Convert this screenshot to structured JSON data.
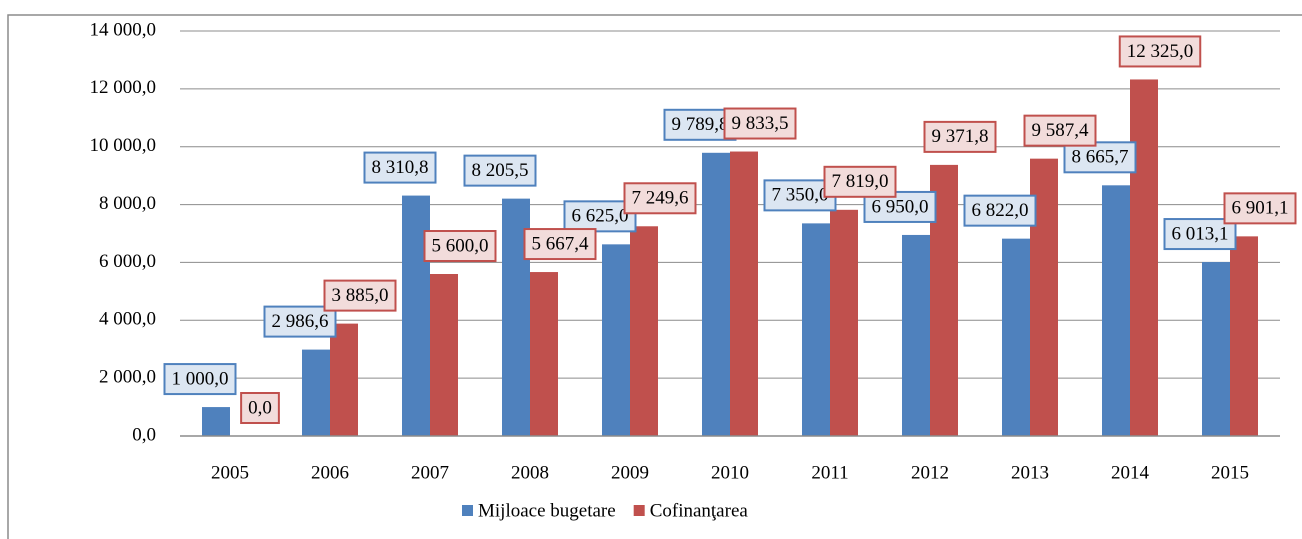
{
  "chart_data": {
    "type": "bar",
    "categories": [
      "2005",
      "2006",
      "2007",
      "2008",
      "2009",
      "2010",
      "2011",
      "2012",
      "2013",
      "2014",
      "2015"
    ],
    "series": [
      {
        "name": "Mijloace bugetare",
        "color": "#4f81bd",
        "values": [
          1000,
          2986.6,
          8310.8,
          8205.5,
          6625.0,
          9789.8,
          7350.0,
          6950.0,
          6822.0,
          8665.7,
          6013.1
        ],
        "value_labels": [
          "1 000,0",
          "2 986,6",
          "8 310,8",
          "8 205,5",
          "6 625,0",
          "9 789,8",
          "7 350,0",
          "6 950,0",
          "6 822,0",
          "8 665,7",
          "6 013,1"
        ]
      },
      {
        "name": "Cofinanţarea",
        "color": "#c0504d",
        "values": [
          0,
          3885.0,
          5600.0,
          5667.4,
          7249.6,
          9833.5,
          7819.0,
          9371.8,
          9587.4,
          12325.0,
          6901.1
        ],
        "value_labels": [
          "0,0",
          "3 885,0",
          "5 600,0",
          "5 667,4",
          "7 249,6",
          "9 833,5",
          "7 819,0",
          "9 371,8",
          "9 587,4",
          "12 325,0",
          "6 901,1"
        ]
      }
    ],
    "ylim": [
      0,
      14000
    ],
    "yticks": [
      {
        "value": 0,
        "label": "0,0"
      },
      {
        "value": 2000,
        "label": "2 000,0"
      },
      {
        "value": 4000,
        "label": "4 000,0"
      },
      {
        "value": 6000,
        "label": "6 000,0"
      },
      {
        "value": 8000,
        "label": "8 000,0"
      },
      {
        "value": 10000,
        "label": "10 000,0"
      },
      {
        "value": 12000,
        "label": "12 000,0"
      },
      {
        "value": 14000,
        "label": "14 000,0"
      }
    ],
    "grid": true,
    "legend": "bottom"
  }
}
